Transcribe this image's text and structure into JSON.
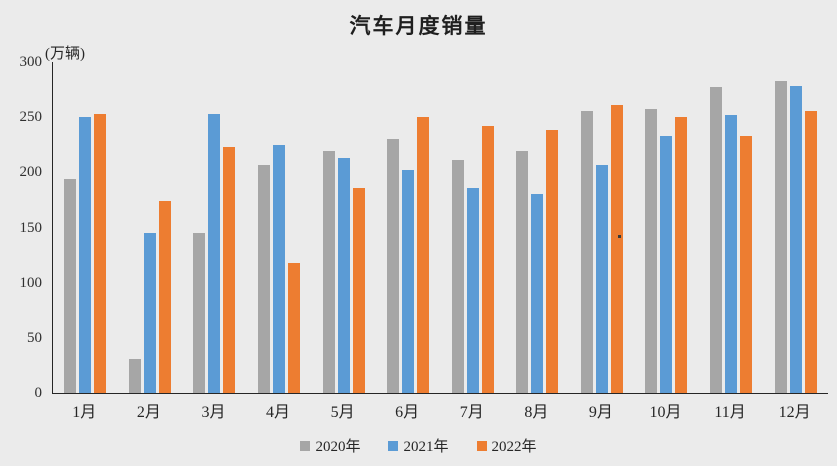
{
  "title": "汽车月度销量",
  "unit_label": "(万辆)",
  "colors": {
    "background": "#EBEBEB",
    "axis": "#262626",
    "text": "#262626",
    "series_2020": "#A6A6A6",
    "series_2021": "#5B9BD5",
    "series_2022": "#ED7D31"
  },
  "chart_data": {
    "type": "bar",
    "title": "汽车月度销量",
    "xlabel": "",
    "ylabel": "(万辆)",
    "ylim": [
      0,
      300
    ],
    "y_tick_step": 50,
    "y_tick_labels": [
      "0",
      "50",
      "100",
      "150",
      "200",
      "250",
      "300"
    ],
    "grid": false,
    "legend_position": "bottom",
    "categories": [
      "1月",
      "2月",
      "3月",
      "4月",
      "5月",
      "6月",
      "7月",
      "8月",
      "9月",
      "10月",
      "11月",
      "12月"
    ],
    "series": [
      {
        "name": "2020年",
        "color": "#A6A6A6",
        "values": [
          194,
          31,
          145,
          207,
          219,
          230,
          211,
          219,
          256,
          257,
          277,
          283
        ]
      },
      {
        "name": "2021年",
        "color": "#5B9BD5",
        "values": [
          250,
          145,
          253,
          225,
          213,
          202,
          186,
          180,
          207,
          233,
          252,
          278
        ]
      },
      {
        "name": "2022年",
        "color": "#ED7D31",
        "values": [
          253,
          174,
          223,
          118,
          186,
          250,
          242,
          238,
          261,
          250,
          233,
          256
        ]
      }
    ]
  }
}
